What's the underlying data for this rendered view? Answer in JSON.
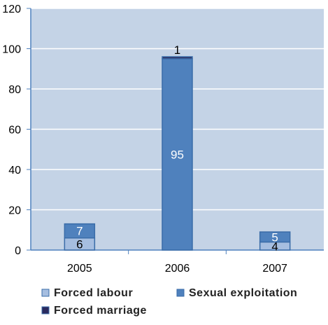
{
  "chart_data": {
    "type": "bar",
    "stacked": true,
    "categories": [
      "2005",
      "2006",
      "2007"
    ],
    "series": [
      {
        "name": "Forced labour",
        "values": [
          6,
          0,
          4
        ],
        "labels": [
          "6",
          "",
          "4"
        ],
        "color": "#a6bee0"
      },
      {
        "name": "Sexual exploitation",
        "values": [
          7,
          95,
          5
        ],
        "labels": [
          "7",
          "95",
          "5"
        ],
        "color": "#4f81bd"
      },
      {
        "name": "Forced marriage",
        "values": [
          0,
          1,
          0
        ],
        "labels": [
          "",
          "1",
          ""
        ],
        "color": "#2a2a5e"
      }
    ],
    "y_ticks": [
      "0",
      "20",
      "40",
      "60",
      "80",
      "100",
      "120"
    ],
    "ylim": [
      0,
      120
    ],
    "grid": true,
    "legend_position": "bottom",
    "colors": {
      "plot_background": "#c4d3e6",
      "gridline": "#ffffff",
      "axis": "#4f81bd",
      "bar_border": "#3a6ca8"
    }
  }
}
